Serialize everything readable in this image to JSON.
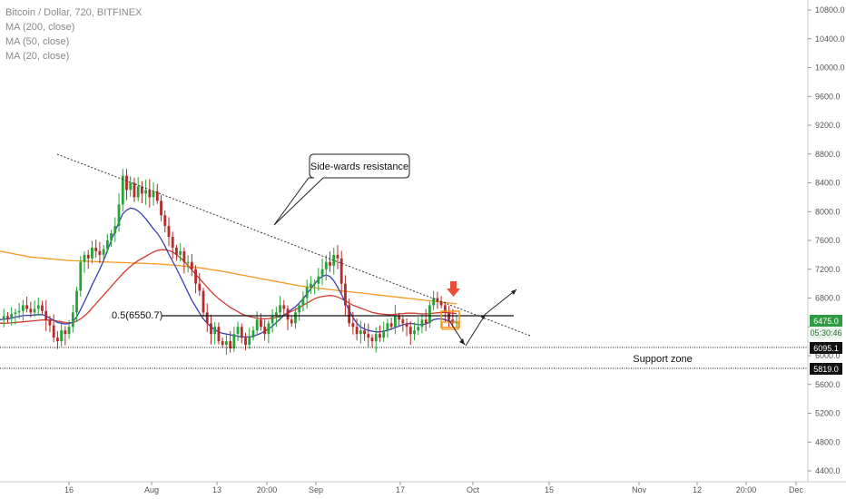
{
  "legend": {
    "title": "Bitcoin / Dollar, 720, BITFINEX",
    "ma200": "MA (200, close)",
    "ma50": "MA (50, close)",
    "ma20": "MA (20, close)"
  },
  "colors": {
    "up": "#26a236",
    "down": "#b52a2a",
    "ma200": "#f59a23",
    "ma50": "#d33b2f",
    "ma20": "#3a3fb5",
    "arrow_marker": "#e8503a",
    "box": "#f7931a",
    "price_badge": "#2e9a42"
  },
  "chart_data": {
    "type": "candlestick",
    "title": "Bitcoin / Dollar, 720, BITFINEX",
    "ylim": [
      4300,
      11000
    ],
    "y_ticks": [
      "10800.0",
      "10400.0",
      "10000.0",
      "9600.0",
      "9200.0",
      "8800.0",
      "8400.0",
      "8000.0",
      "7600.0",
      "7200.0",
      "6800.0",
      "6400.0",
      "6000.0",
      "5600.0",
      "5200.0",
      "4800.0",
      "4400.0"
    ],
    "x_ticks": [
      "16",
      "Aug",
      "13",
      "20:00",
      "Sep",
      "17",
      "Oct",
      "15",
      "Nov",
      "12",
      "20:00",
      "Dec"
    ],
    "price_path": [
      6500,
      6550,
      6520,
      6580,
      6600,
      6620,
      6700,
      6650,
      6600,
      6650,
      6700,
      6620,
      6500,
      6420,
      6250,
      6200,
      6350,
      6300,
      6400,
      6600,
      6900,
      7300,
      7400,
      7350,
      7500,
      7450,
      7400,
      7480,
      7600,
      7700,
      7800,
      8100,
      8500,
      8300,
      8400,
      8200,
      8350,
      8250,
      8300,
      8200,
      8280,
      8150,
      7950,
      7800,
      7650,
      7500,
      7400,
      7450,
      7300,
      7300,
      7200,
      7000,
      6900,
      6600,
      6450,
      6300,
      6400,
      6200,
      6150,
      6200,
      6100,
      6300,
      6400,
      6250,
      6150,
      6250,
      6350,
      6500,
      6400,
      6300,
      6450,
      6550,
      6600,
      6700,
      6650,
      6500,
      6450,
      6600,
      6700,
      6800,
      6950,
      7000,
      7000,
      7100,
      7200,
      7300,
      7250,
      7400,
      7350,
      7000,
      6700,
      6450,
      6400,
      6300,
      6350,
      6300,
      6250,
      6200,
      6300,
      6250,
      6350,
      6450,
      6400,
      6550,
      6500,
      6450,
      6400,
      6300,
      6350,
      6400,
      6500,
      6450,
      6700,
      6800,
      6750,
      6700,
      6600,
      6500,
      6450,
      6475
    ],
    "ma20": [
      6500,
      6505,
      6510,
      6520,
      6535,
      6545,
      6555,
      6560,
      6560,
      6565,
      6570,
      6570,
      6550,
      6520,
      6490,
      6460,
      6450,
      6440,
      6445,
      6470,
      6540,
      6640,
      6750,
      6860,
      6980,
      7090,
      7200,
      7320,
      7460,
      7600,
      7730,
      7850,
      7970,
      8020,
      8050,
      8040,
      8010,
      7960,
      7900,
      7830,
      7760,
      7700,
      7620,
      7520,
      7410,
      7310,
      7210,
      7100,
      6990,
      6880,
      6770,
      6680,
      6590,
      6510,
      6450,
      6400,
      6360,
      6330,
      6310,
      6300,
      6290,
      6280,
      6270,
      6260,
      6260,
      6260,
      6270,
      6290,
      6310,
      6340,
      6370,
      6410,
      6460,
      6510,
      6560,
      6600,
      6640,
      6680,
      6730,
      6790,
      6860,
      6930,
      7000,
      7060,
      7100,
      7120,
      7100,
      7040,
      6950,
      6850,
      6740,
      6630,
      6530,
      6450,
      6400,
      6370,
      6350,
      6340,
      6330,
      6330,
      6340,
      6350,
      6370,
      6390,
      6410,
      6430,
      6440,
      6450,
      6440,
      6430,
      6430,
      6440,
      6470,
      6500,
      6510,
      6510,
      6500,
      6480,
      6470,
      6465
    ],
    "ma50": [
      6450,
      6450,
      6452,
      6455,
      6460,
      6465,
      6470,
      6475,
      6480,
      6485,
      6490,
      6495,
      6495,
      6495,
      6490,
      6480,
      6470,
      6460,
      6455,
      6460,
      6480,
      6510,
      6550,
      6600,
      6660,
      6720,
      6780,
      6840,
      6900,
      6960,
      7020,
      7080,
      7140,
      7190,
      7240,
      7280,
      7320,
      7350,
      7380,
      7410,
      7440,
      7460,
      7470,
      7470,
      7460,
      7440,
      7400,
      7360,
      7310,
      7250,
      7190,
      7130,
      7070,
      7010,
      6950,
      6890,
      6840,
      6790,
      6750,
      6710,
      6670,
      6640,
      6610,
      6580,
      6560,
      6545,
      6530,
      6520,
      6515,
      6510,
      6515,
      6520,
      6530,
      6545,
      6565,
      6590,
      6615,
      6640,
      6670,
      6700,
      6730,
      6760,
      6790,
      6810,
      6820,
      6830,
      6835,
      6830,
      6815,
      6790,
      6760,
      6730,
      6700,
      6680,
      6660,
      6640,
      6620,
      6600,
      6590,
      6580,
      6575,
      6570,
      6570,
      6575,
      6580,
      6585,
      6590,
      6590,
      6590,
      6585,
      6580,
      6580,
      6585,
      6590,
      6595,
      6600,
      6600,
      6595,
      6590,
      6585
    ],
    "ma200": [
      7450,
      7440,
      7430,
      7420,
      7410,
      7400,
      7390,
      7380,
      7370,
      7365,
      7360,
      7355,
      7350,
      7345,
      7340,
      7335,
      7330,
      7325,
      7320,
      7318,
      7316,
      7314,
      7312,
      7310,
      7308,
      7306,
      7304,
      7302,
      7300,
      7298,
      7296,
      7294,
      7292,
      7290,
      7288,
      7286,
      7284,
      7282,
      7280,
      7278,
      7276,
      7274,
      7270,
      7266,
      7262,
      7258,
      7254,
      7250,
      7244,
      7238,
      7232,
      7226,
      7220,
      7212,
      7204,
      7196,
      7188,
      7180,
      7170,
      7160,
      7150,
      7140,
      7130,
      7120,
      7110,
      7100,
      7090,
      7080,
      7070,
      7060,
      7050,
      7040,
      7030,
      7020,
      7010,
      7000,
      6990,
      6980,
      6970,
      6962,
      6955,
      6948,
      6942,
      6936,
      6930,
      6924,
      6918,
      6912,
      6906,
      6900,
      6894,
      6888,
      6882,
      6876,
      6870,
      6864,
      6858,
      6852,
      6846,
      6840,
      6834,
      6828,
      6822,
      6816,
      6810,
      6804,
      6798,
      6792,
      6786,
      6780,
      6774,
      6768,
      6762,
      6756,
      6750,
      6744,
      6738,
      6732,
      6726,
      6720
    ]
  },
  "annotations": {
    "resistance_label": "Side-wards resistance",
    "fib_label": "0.5(6550.7)",
    "support_label": "Support zone"
  },
  "price_badges": {
    "current_price": "6475.0",
    "countdown": "05:30:46",
    "support_top": "6095.1",
    "support_bottom": "5819.0"
  }
}
